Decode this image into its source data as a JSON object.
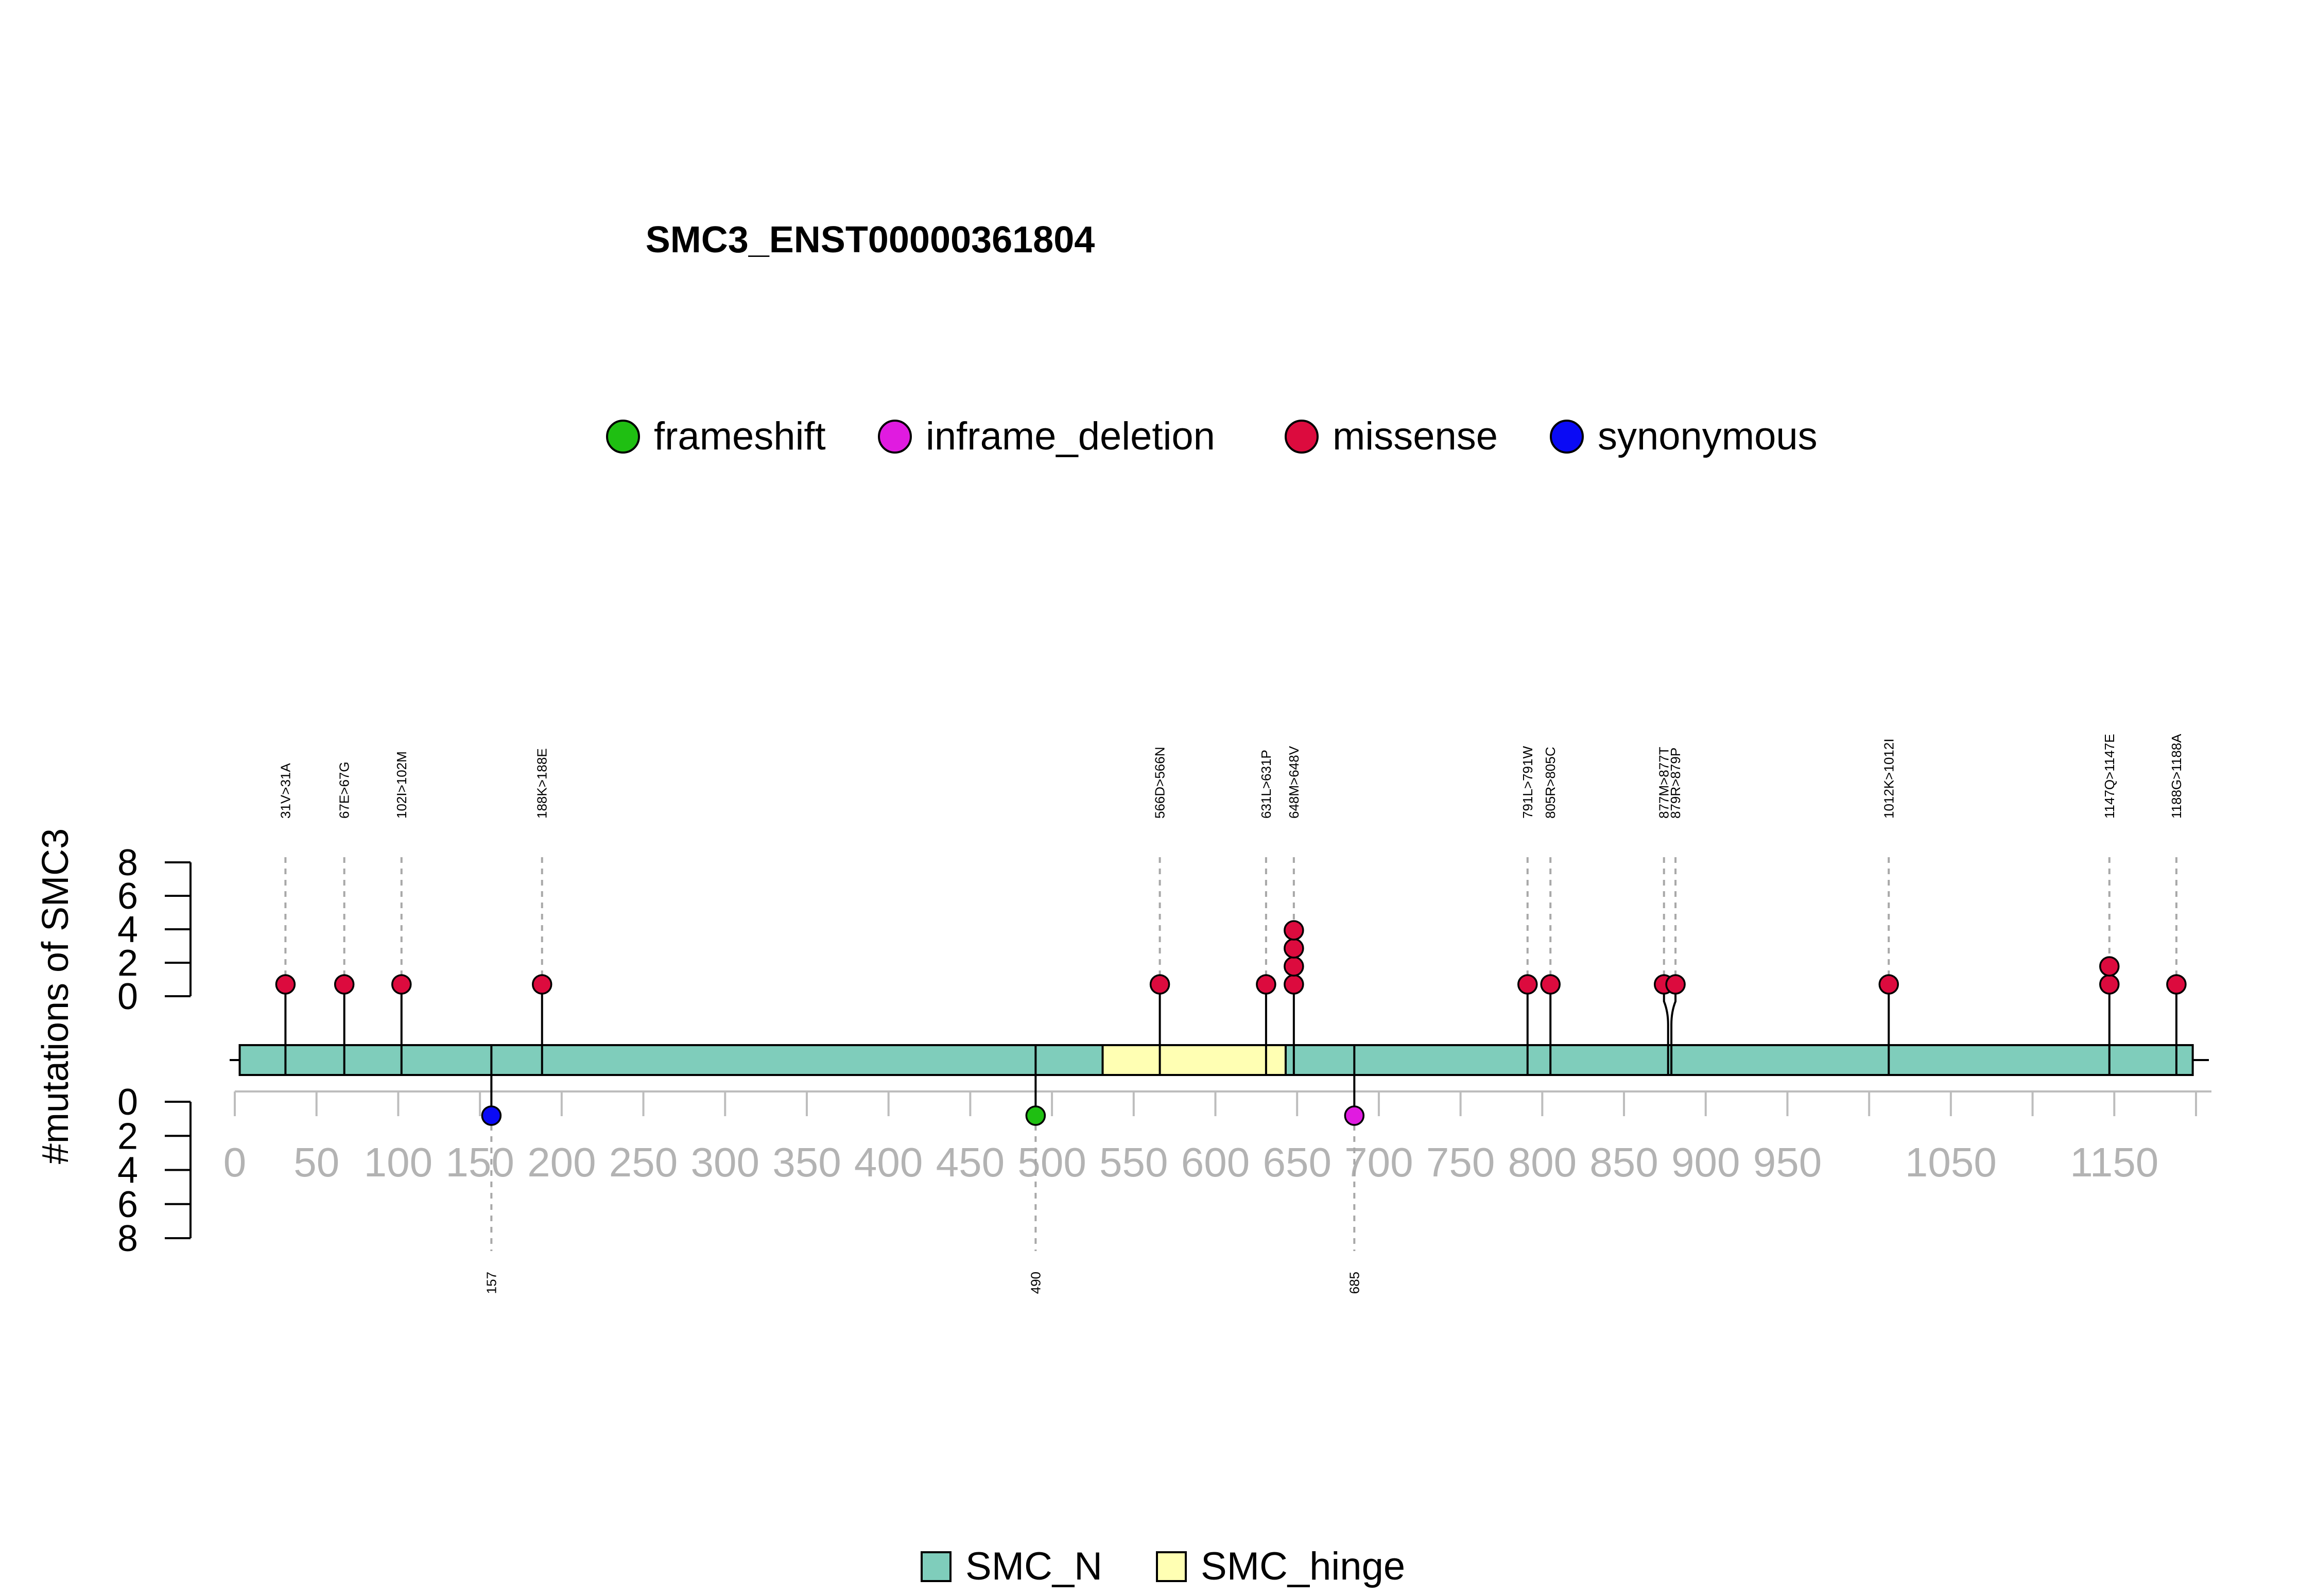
{
  "chart_data": {
    "type": "lollipop",
    "title": "SMC3_ENST00000361804",
    "ylabel": "#mutations of SMC3",
    "xlim": [
      0,
      1200
    ],
    "ylim_top": [
      0,
      8
    ],
    "ylim_bottom": [
      0,
      8
    ],
    "y_ticks_top": [
      "0",
      "2",
      "4",
      "6",
      "8"
    ],
    "y_ticks_bottom": [
      "0",
      "2",
      "4",
      "6",
      "8"
    ],
    "x_ticks": [
      "0",
      "50",
      "100",
      "150",
      "200",
      "250",
      "300",
      "350",
      "400",
      "450",
      "500",
      "550",
      "600",
      "650",
      "700",
      "750",
      "800",
      "850",
      "900",
      "950",
      "1050",
      "1150"
    ],
    "legend_mutation": [
      {
        "name": "frameshift",
        "color": "#1fbf12"
      },
      {
        "name": "inframe_deletion",
        "color": "#e01be0"
      },
      {
        "name": "missense",
        "color": "#dc0b3e"
      },
      {
        "name": "synonymous",
        "color": "#0a0af5"
      }
    ],
    "domains": [
      {
        "name": "SMC_N",
        "start": 3,
        "end": 531,
        "color": "#7fcdbb"
      },
      {
        "name": "SMC_hinge",
        "start": 531,
        "end": 643,
        "color": "#ffffb3"
      },
      {
        "name": "SMC_N",
        "start": 643,
        "end": 1198,
        "color": "#7fcdbb"
      }
    ],
    "legend_domain": [
      {
        "name": "SMC_N",
        "color": "#7fcdbb"
      },
      {
        "name": "SMC_hinge",
        "color": "#ffffb3"
      }
    ],
    "mutations_top": [
      {
        "pos": 31,
        "label": "31V>31A",
        "count": 1,
        "type": "missense"
      },
      {
        "pos": 67,
        "label": "67E>67G",
        "count": 1,
        "type": "missense"
      },
      {
        "pos": 102,
        "label": "102I>102M",
        "count": 1,
        "type": "missense"
      },
      {
        "pos": 188,
        "label": "188K>188E",
        "count": 1,
        "type": "missense"
      },
      {
        "pos": 566,
        "label": "566D>566N",
        "count": 1,
        "type": "missense"
      },
      {
        "pos": 631,
        "label": "631L>631P",
        "count": 1,
        "type": "missense"
      },
      {
        "pos": 648,
        "label": "648M>648V",
        "count": 4,
        "type": "missense"
      },
      {
        "pos": 791,
        "label": "791L>791W",
        "count": 1,
        "type": "missense"
      },
      {
        "pos": 805,
        "label": "805R>805C",
        "count": 1,
        "type": "missense"
      },
      {
        "pos": 877,
        "label": "877M>877T",
        "count": 1,
        "type": "missense"
      },
      {
        "pos": 879,
        "label": "879R>879P",
        "count": 1,
        "type": "missense"
      },
      {
        "pos": 1012,
        "label": "1012K>1012I",
        "count": 1,
        "type": "missense"
      },
      {
        "pos": 1147,
        "label": "1147Q>1147E",
        "count": 2,
        "type": "missense"
      },
      {
        "pos": 1188,
        "label": "1188G>1188A",
        "count": 1,
        "type": "missense"
      }
    ],
    "mutations_bottom": [
      {
        "pos": 157,
        "label": "157",
        "count": 1,
        "type": "synonymous"
      },
      {
        "pos": 490,
        "label": "490",
        "count": 1,
        "type": "frameshift"
      },
      {
        "pos": 685,
        "label": "685",
        "count": 1,
        "type": "inframe_deletion"
      }
    ]
  }
}
